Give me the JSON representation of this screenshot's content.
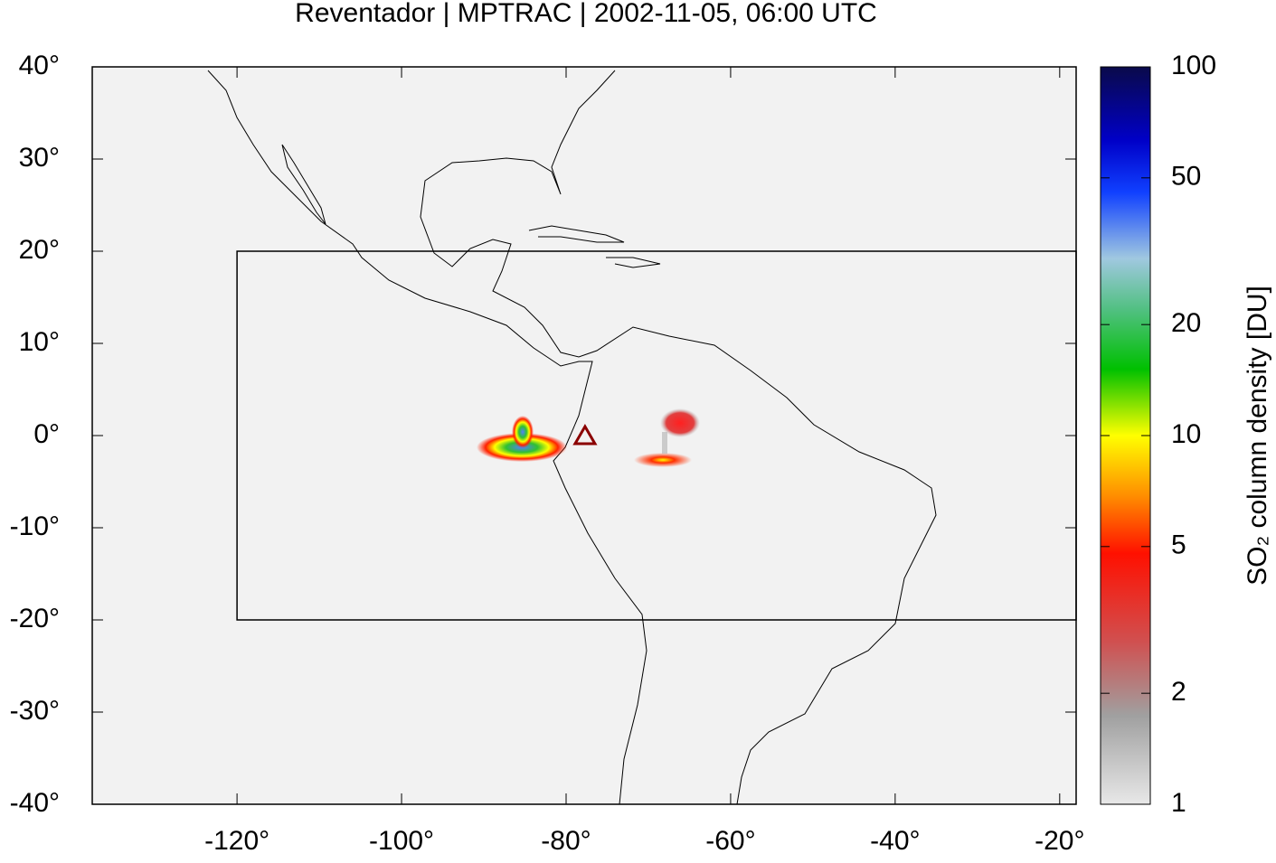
{
  "chart_data": {
    "type": "map",
    "title": "Reventador | MPTRAC | 2002-11-05, 06:00 UTC",
    "xlim": [
      -137.6,
      -18.0
    ],
    "ylim": [
      -40,
      40
    ],
    "xticks": [
      {
        "value": -120,
        "label": "-120°"
      },
      {
        "value": -100,
        "label": "-100°"
      },
      {
        "value": -80,
        "label": "-80°"
      },
      {
        "value": -60,
        "label": "-60°"
      },
      {
        "value": -40,
        "label": "-40°"
      },
      {
        "value": -20,
        "label": "-20°"
      }
    ],
    "yticks": [
      {
        "value": -40,
        "label": "-40°"
      },
      {
        "value": -30,
        "label": "-30°"
      },
      {
        "value": -20,
        "label": "-20°"
      },
      {
        "value": -10,
        "label": "-10°"
      },
      {
        "value": 0,
        "label": "0°"
      },
      {
        "value": 10,
        "label": "10°"
      },
      {
        "value": 20,
        "label": "20°"
      },
      {
        "value": 30,
        "label": "30°"
      },
      {
        "value": 40,
        "label": "40°"
      }
    ],
    "region": {
      "lon": [
        -120,
        -18.0
      ],
      "lat": [
        -20,
        20
      ]
    },
    "volcano": {
      "lon": -77.7,
      "lat": -0.1,
      "color": "#8b0000"
    },
    "colorbar": {
      "label": "SO₂ column density [DU]",
      "log_scale": true,
      "lim": [
        1,
        100
      ],
      "ticks": [
        1,
        2,
        5,
        10,
        20,
        50,
        100
      ]
    }
  }
}
